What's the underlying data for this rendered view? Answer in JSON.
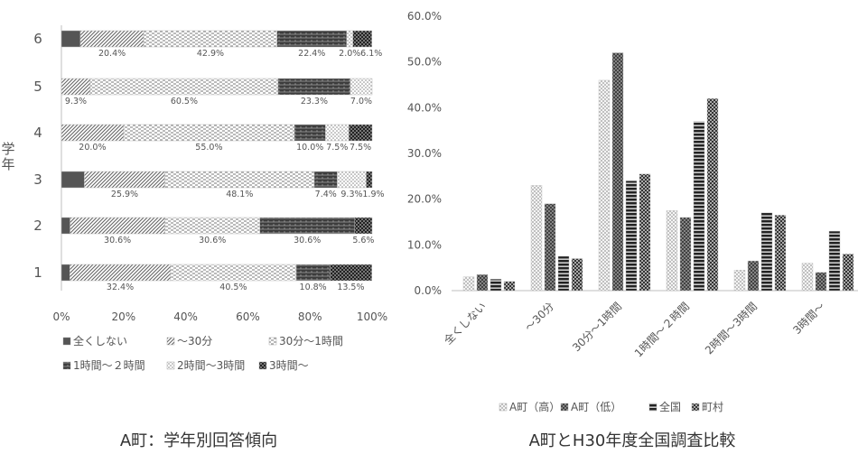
{
  "chart_data": [
    {
      "type": "bar",
      "orientation": "horizontal",
      "stacked": true,
      "title": "A町：学年別回答傾向",
      "ylabel": "学年",
      "categories": [
        "6",
        "5",
        "4",
        "3",
        "2",
        "1"
      ],
      "xlim": [
        0,
        100
      ],
      "x_ticks": [
        "0%",
        "20%",
        "40%",
        "60%",
        "80%",
        "100%"
      ],
      "legend_position": "bottom",
      "series": [
        {
          "name": "全くしない",
          "values": [
            6.1,
            0,
            0,
            7.4,
            2.8,
            2.7
          ],
          "labels": [
            "",
            "",
            "",
            "",
            "",
            ""
          ]
        },
        {
          "name": "〜30分",
          "values": [
            20.4,
            9.3,
            20.0,
            25.9,
            30.6,
            32.4
          ],
          "labels": [
            "20.4%",
            "9.3%",
            "20.0%",
            "25.9%",
            "30.6%",
            "32.4%"
          ]
        },
        {
          "name": "30分〜1時間",
          "values": [
            42.9,
            60.5,
            55.0,
            48.1,
            30.6,
            40.5
          ],
          "labels": [
            "42.9%",
            "60.5%",
            "55.0%",
            "48.1%",
            "30.6%",
            "40.5%"
          ]
        },
        {
          "name": "1時間〜２時間",
          "values": [
            22.4,
            23.3,
            10.0,
            7.4,
            30.6,
            10.8
          ],
          "labels": [
            "22.4%",
            "23.3%",
            "10.0%",
            "7.4%",
            "30.6%",
            "10.8%"
          ]
        },
        {
          "name": "2時間〜3時間",
          "values": [
            2.0,
            7.0,
            7.5,
            9.3,
            0,
            0
          ],
          "labels": [
            "2.0%",
            "7.0%",
            "7.5%",
            "9.3%",
            "",
            ""
          ]
        },
        {
          "name": "3時間〜",
          "values": [
            6.1,
            0,
            7.5,
            1.9,
            5.6,
            13.5
          ],
          "labels": [
            "6.1%",
            "",
            "7.5%",
            "1.9%",
            "5.6%",
            "13.5%"
          ]
        }
      ]
    },
    {
      "type": "bar",
      "title": "A町とH30年度全国調査比較",
      "categories": [
        "全くしない",
        "〜30分",
        "30分〜1時間",
        "1時間〜２時間",
        "2時間〜3時間",
        "3時間〜"
      ],
      "ylim": [
        0,
        60
      ],
      "y_ticks": [
        "0.0%",
        "10.0%",
        "20.0%",
        "30.0%",
        "40.0%",
        "50.0%",
        "60.0%"
      ],
      "legend_position": "bottom",
      "series": [
        {
          "name": "A町（高）",
          "values": [
            3.0,
            23.0,
            46.0,
            17.5,
            4.5,
            6.0
          ]
        },
        {
          "name": "A町（低）",
          "values": [
            3.5,
            19.0,
            52.0,
            16.0,
            6.5,
            4.0
          ]
        },
        {
          "name": "全国",
          "values": [
            2.5,
            7.5,
            24.0,
            37.0,
            17.0,
            13.0
          ]
        },
        {
          "name": "町村",
          "values": [
            2.0,
            7.0,
            25.5,
            42.0,
            16.5,
            8.0
          ]
        }
      ]
    }
  ],
  "colors": {
    "text": "#555555",
    "axis": "#bfbfbf",
    "series_dark": "#3a3a3a",
    "series_mid": "#707070",
    "series_light": "#a8a8a8"
  }
}
